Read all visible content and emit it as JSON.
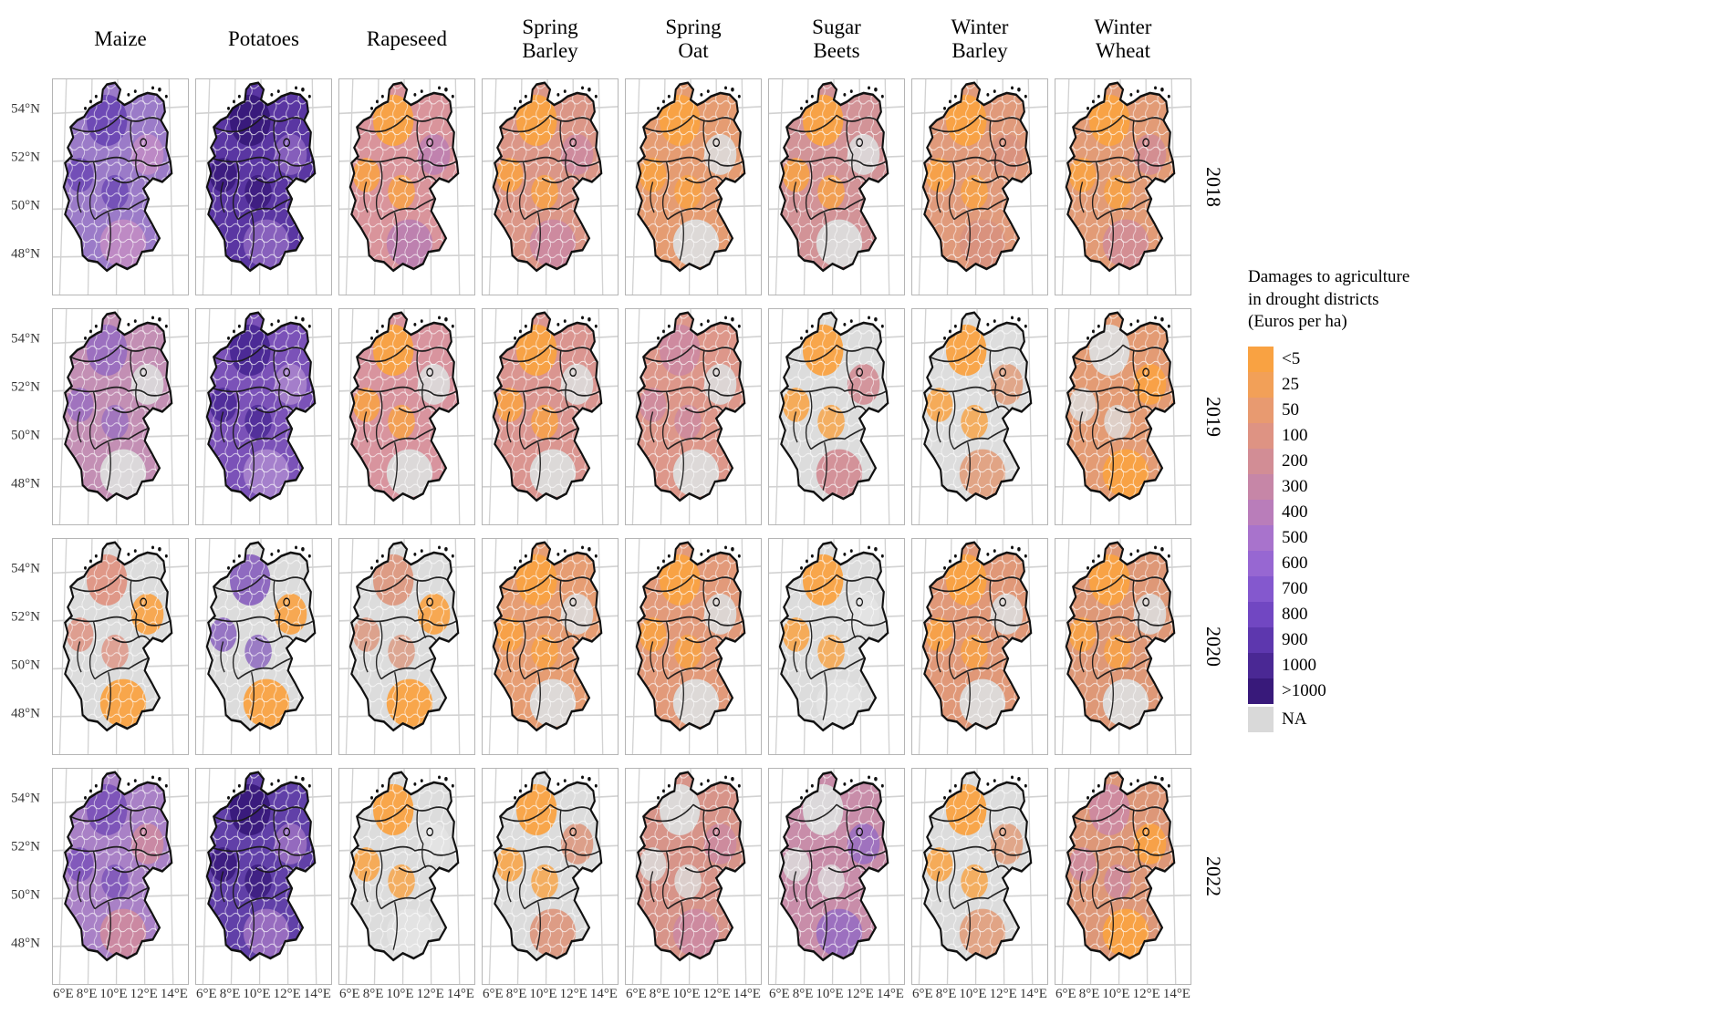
{
  "figure": {
    "columns": [
      {
        "id": "maize",
        "label_lines": [
          "Maize"
        ]
      },
      {
        "id": "potatoes",
        "label_lines": [
          "Potatoes"
        ]
      },
      {
        "id": "rapeseed",
        "label_lines": [
          "Rapeseed"
        ]
      },
      {
        "id": "spring_barley",
        "label_lines": [
          "Spring",
          "Barley"
        ]
      },
      {
        "id": "spring_oat",
        "label_lines": [
          "Spring",
          "Oat"
        ]
      },
      {
        "id": "sugar_beets",
        "label_lines": [
          "Sugar",
          "Beets"
        ]
      },
      {
        "id": "winter_barley",
        "label_lines": [
          "Winter",
          "Barley"
        ]
      },
      {
        "id": "winter_wheat",
        "label_lines": [
          "Winter",
          "Wheat"
        ]
      }
    ],
    "rows": [
      "2018",
      "2019",
      "2020",
      "2022"
    ],
    "y_ticks": [
      "54°N",
      "52°N",
      "50°N",
      "48°N"
    ],
    "x_ticks": [
      "6°E",
      "8°E",
      "10°E",
      "12°E",
      "14°E"
    ],
    "legend": {
      "title_lines": [
        "Damages to agriculture",
        "in drought districts",
        "(Euros per ha)"
      ],
      "entries": [
        {
          "label": "<5",
          "color": "#F9A242"
        },
        {
          "label": "25",
          "color": "#F2A058"
        },
        {
          "label": "50",
          "color": "#E89A70"
        },
        {
          "label": "100",
          "color": "#DE9383"
        },
        {
          "label": "200",
          "color": "#D28D95"
        },
        {
          "label": "300",
          "color": "#C686A7"
        },
        {
          "label": "400",
          "color": "#B97DBA"
        },
        {
          "label": "500",
          "color": "#A873CC"
        },
        {
          "label": "600",
          "color": "#9767D2"
        },
        {
          "label": "700",
          "color": "#8458CE"
        },
        {
          "label": "800",
          "color": "#7147C2"
        },
        {
          "label": "900",
          "color": "#5D37AE"
        },
        {
          "label": "1000",
          "color": "#4A2894"
        },
        {
          "label": ">1000",
          "color": "#38197A"
        },
        {
          "label": "NA",
          "color": "#D9D9D9"
        }
      ]
    },
    "facets": [
      {
        "crop": "maize",
        "year": "2018",
        "base": "#9B7BC8",
        "accents": [
          "#6C48B4",
          "#C08BC4"
        ]
      },
      {
        "crop": "potatoes",
        "year": "2018",
        "base": "#5A36A2",
        "accents": [
          "#38197A",
          "#8A63BE"
        ]
      },
      {
        "crop": "rapeseed",
        "year": "2018",
        "base": "#D9949B",
        "accents": [
          "#F9A242",
          "#BC80B0"
        ]
      },
      {
        "crop": "spring_barley",
        "year": "2018",
        "base": "#DB9687",
        "accents": [
          "#F9A242",
          "#CC89A0"
        ]
      },
      {
        "crop": "spring_oat",
        "year": "2018",
        "base": "#E59C72",
        "accents": [
          "#F9A242",
          "#DCDCDC"
        ]
      },
      {
        "crop": "sugar_beets",
        "year": "2018",
        "base": "#D29397",
        "accents": [
          "#F9A242",
          "#DCDCDC"
        ]
      },
      {
        "crop": "winter_barley",
        "year": "2018",
        "base": "#E09A7B",
        "accents": [
          "#F9A242",
          "#D8917E"
        ]
      },
      {
        "crop": "winter_wheat",
        "year": "2018",
        "base": "#E29B76",
        "accents": [
          "#F9A242",
          "#D28D95"
        ]
      },
      {
        "crop": "maize",
        "year": "2019",
        "base": "#C38FB4",
        "accents": [
          "#9A6FC0",
          "#DCDCDC"
        ]
      },
      {
        "crop": "potatoes",
        "year": "2019",
        "base": "#7B52B8",
        "accents": [
          "#4A2894",
          "#A883CC"
        ]
      },
      {
        "crop": "rapeseed",
        "year": "2019",
        "base": "#D8949E",
        "accents": [
          "#F9A242",
          "#DCDCDC"
        ]
      },
      {
        "crop": "spring_barley",
        "year": "2019",
        "base": "#DA9590",
        "accents": [
          "#F9A242",
          "#DCDCDC"
        ]
      },
      {
        "crop": "spring_oat",
        "year": "2019",
        "base": "#DD978A",
        "accents": [
          "#CC89A0",
          "#DCDCDC"
        ]
      },
      {
        "crop": "sugar_beets",
        "year": "2019",
        "base": "#DCDCDC",
        "accents": [
          "#F9A242",
          "#D28D95"
        ]
      },
      {
        "crop": "winter_barley",
        "year": "2019",
        "base": "#DDDDDD",
        "accents": [
          "#F9A242",
          "#E0A080"
        ]
      },
      {
        "crop": "winter_wheat",
        "year": "2019",
        "base": "#E39B74",
        "accents": [
          "#DCDCDC",
          "#F9A242"
        ]
      },
      {
        "crop": "maize",
        "year": "2020",
        "base": "#DCDCDC",
        "accents": [
          "#DE9383",
          "#F9A242"
        ]
      },
      {
        "crop": "potatoes",
        "year": "2020",
        "base": "#DCDCDC",
        "accents": [
          "#8A63BE",
          "#F9A242"
        ]
      },
      {
        "crop": "rapeseed",
        "year": "2020",
        "base": "#DCDCDC",
        "accents": [
          "#DC987F",
          "#F9A242"
        ]
      },
      {
        "crop": "spring_barley",
        "year": "2020",
        "base": "#E69D73",
        "accents": [
          "#F9A242",
          "#DCDCDC"
        ]
      },
      {
        "crop": "spring_oat",
        "year": "2020",
        "base": "#E29A7A",
        "accents": [
          "#F9A242",
          "#DCDCDC"
        ]
      },
      {
        "crop": "sugar_beets",
        "year": "2020",
        "base": "#DCDCDC",
        "accents": [
          "#F9A242",
          "#E3E3E3"
        ]
      },
      {
        "crop": "winter_barley",
        "year": "2020",
        "base": "#E09878",
        "accents": [
          "#F9A242",
          "#DCDCDC"
        ]
      },
      {
        "crop": "winter_wheat",
        "year": "2020",
        "base": "#DE9877",
        "accents": [
          "#F9A242",
          "#DCDCDC"
        ]
      },
      {
        "crop": "maize",
        "year": "2022",
        "base": "#A981C6",
        "accents": [
          "#7B52B8",
          "#CC89A0"
        ]
      },
      {
        "crop": "potatoes",
        "year": "2022",
        "base": "#6140A8",
        "accents": [
          "#38197A",
          "#9A6FC0"
        ]
      },
      {
        "crop": "rapeseed",
        "year": "2022",
        "base": "#DCDCDC",
        "accents": [
          "#F9A242",
          "#E3E3E3"
        ]
      },
      {
        "crop": "spring_barley",
        "year": "2022",
        "base": "#DCDCDC",
        "accents": [
          "#F9A242",
          "#DC987F"
        ]
      },
      {
        "crop": "spring_oat",
        "year": "2022",
        "base": "#D79489",
        "accents": [
          "#DCDCDC",
          "#CC89A0"
        ]
      },
      {
        "crop": "sugar_beets",
        "year": "2022",
        "base": "#C88DA9",
        "accents": [
          "#DCDCDC",
          "#9A6FC0"
        ]
      },
      {
        "crop": "winter_barley",
        "year": "2022",
        "base": "#DCDCDC",
        "accents": [
          "#F9A242",
          "#E0A080"
        ]
      },
      {
        "crop": "winter_wheat",
        "year": "2022",
        "base": "#DD9778",
        "accents": [
          "#CC89A0",
          "#F9A242"
        ]
      }
    ]
  }
}
